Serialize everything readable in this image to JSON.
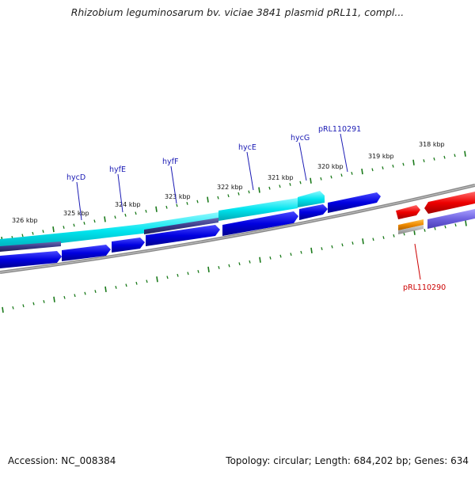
{
  "title": "Rhizobium leguminosarum bv. viciae 3841 plasmid pRL11, compl...",
  "footer": {
    "accession": "Accession: NC_008384",
    "summary": "Topology: circular; Length: 684,202 bp; Genes: 634"
  },
  "scale_labels": [
    "326 kbp",
    "325 kbp",
    "324 kbp",
    "323 kbp",
    "322 kbp",
    "321 kbp",
    "320 kbp",
    "319 kbp",
    "318 kbp"
  ],
  "gene_labels": {
    "hycD": "hycD",
    "hyfE": "hyfE",
    "hyfF": "hyfF",
    "hycE": "hycE",
    "hycG": "hycG",
    "pRL110291": "pRL110291",
    "pRL110290": "pRL110290"
  },
  "colors": {
    "tick": "#1a7a1a",
    "backbone": "#7f7f7f",
    "cds_blue": "#0000e6",
    "cds_cyan": "#00e0e8",
    "cds_red": "#e60000",
    "cds_orange": "#e68a00",
    "cds_lavender": "#7b6fe0",
    "label_blue": "#1a1ab4",
    "label_red": "#cc0000"
  }
}
